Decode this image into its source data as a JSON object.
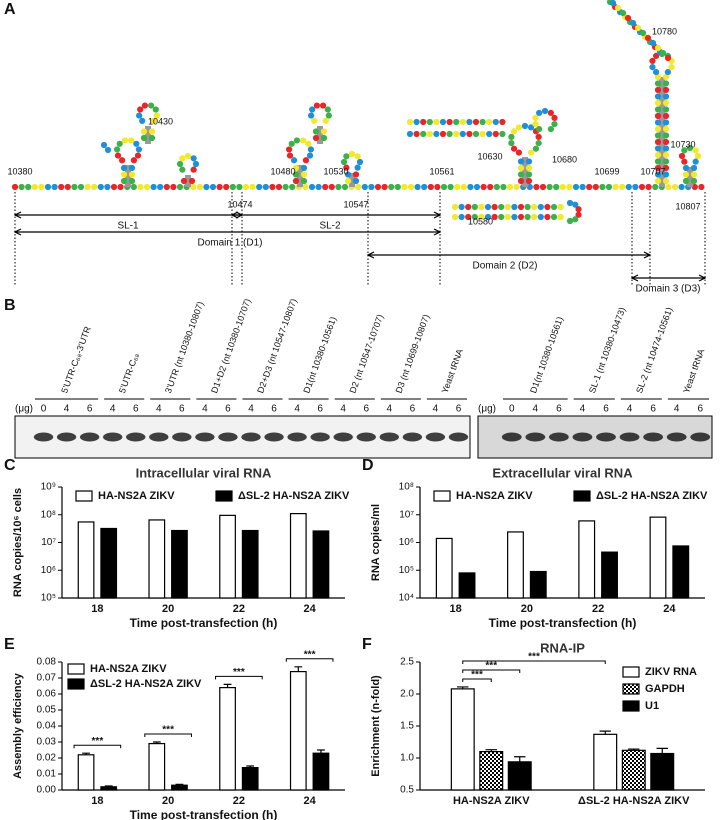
{
  "diagram": {
    "panel": "A",
    "positions": [
      "10380",
      "10430",
      "10474",
      "10480",
      "10530",
      "10547",
      "10561",
      "10580",
      "10630",
      "10680",
      "10699",
      "10707",
      "10730",
      "10780",
      "10807"
    ],
    "regions": [
      "SL-1",
      "SL-2",
      "Domain 1 (D1)",
      "Domain 2 (D2)",
      "Domain 3 (D3)"
    ]
  },
  "gel": {
    "panel": "B",
    "unit": "(μg)",
    "left": [
      {
        "label": "5'UTR-C₆₈-3'UTR",
        "doses": [
          "0",
          "4",
          "6"
        ]
      },
      {
        "label": "5'UTR-C₆₈",
        "doses": [
          "4",
          "6"
        ]
      },
      {
        "label": "3'UTR (nt 10380-10807)",
        "doses": [
          "4",
          "6"
        ]
      },
      {
        "label": "D1+D2 (nt 10380-10707)",
        "doses": [
          "4",
          "6"
        ]
      },
      {
        "label": "D2+D3 (nt 10547-10807)",
        "doses": [
          "4",
          "6"
        ]
      },
      {
        "label": "D1(nt 10380-10561)",
        "doses": [
          "4",
          "6"
        ]
      },
      {
        "label": "D2 (nt 10547-10707)",
        "doses": [
          "4",
          "6"
        ]
      },
      {
        "label": "D3 (nt 10699-10807)",
        "doses": [
          "4",
          "6"
        ]
      },
      {
        "label": "Yeast tRNA",
        "doses": [
          "4",
          "6"
        ]
      }
    ],
    "right": [
      {
        "label": "D1(nt 10380-10561)",
        "doses": [
          "0",
          "4",
          "6"
        ]
      },
      {
        "label": "SL-1 (nt 10380-10473)",
        "doses": [
          "4",
          "6"
        ]
      },
      {
        "label": "SL-2 (nt 10474-10561)",
        "doses": [
          "4",
          "6"
        ]
      },
      {
        "label": "Yeast tRNA",
        "doses": [
          "4",
          "6"
        ]
      }
    ]
  },
  "chart_data": [
    {
      "type": "bar",
      "panel": "C",
      "title": "Intracellular viral RNA",
      "ylabel": "RNA copies/10⁶ cells",
      "xlabel": "Time post-transfection (h)",
      "categories": [
        "18",
        "20",
        "22",
        "24"
      ],
      "log_y": true,
      "legend": "top",
      "ylim": [
        100000,
        1000000000
      ],
      "yticks": [
        {
          "value": 100000,
          "label": "10⁵"
        },
        {
          "value": 1000000,
          "label": "10⁶"
        },
        {
          "value": 10000000,
          "label": "10⁷"
        },
        {
          "value": 100000000,
          "label": "10⁸"
        },
        {
          "value": 1000000000,
          "label": "10⁹"
        }
      ],
      "series": [
        {
          "name": "HA-NS2A ZIKV",
          "color": "#ffffff",
          "values": [
            55000000,
            65000000,
            95000000,
            110000000
          ]
        },
        {
          "name": "ΔSL-2 HA-NS2A ZIKV",
          "color": "#000000",
          "values": [
            32000000,
            27000000,
            27000000,
            26000000
          ]
        }
      ]
    },
    {
      "type": "bar",
      "panel": "D",
      "title": "Extracellular viral RNA",
      "ylabel": "RNA copies/ml",
      "xlabel": "Time post-transfection (h)",
      "categories": [
        "18",
        "20",
        "22",
        "24"
      ],
      "log_y": true,
      "legend": "top",
      "ylim": [
        10000,
        100000000
      ],
      "yticks": [
        {
          "value": 10000,
          "label": "10⁴"
        },
        {
          "value": 100000,
          "label": "10⁵"
        },
        {
          "value": 1000000,
          "label": "10⁶"
        },
        {
          "value": 10000000,
          "label": "10⁷"
        },
        {
          "value": 100000000,
          "label": "10⁸"
        }
      ],
      "series": [
        {
          "name": "HA-NS2A ZIKV",
          "color": "#ffffff",
          "values": [
            1400000,
            2400000,
            6000000,
            8200000
          ]
        },
        {
          "name": "ΔSL-2 HA-NS2A ZIKV",
          "color": "#000000",
          "values": [
            80000,
            90000,
            450000,
            750000
          ]
        }
      ]
    },
    {
      "type": "bar",
      "panel": "E",
      "ylabel": "Assembly efficiency",
      "xlabel": "Time post-transfection (h)",
      "categories": [
        "18",
        "20",
        "22",
        "24"
      ],
      "legend": "upper left",
      "ylim": [
        0,
        0.08
      ],
      "yticks": [
        {
          "value": 0,
          "label": "0.00"
        },
        0.01,
        0.02,
        0.03,
        0.04,
        0.05,
        0.06,
        0.07,
        0.08
      ],
      "series": [
        {
          "name": "HA-NS2A ZIKV",
          "color": "#ffffff",
          "values": [
            0.022,
            0.029,
            0.064,
            0.074
          ],
          "errors": [
            0.001,
            0.001,
            0.002,
            0.003
          ]
        },
        {
          "name": "ΔSL-2 HA-NS2A ZIKV",
          "color": "#000000",
          "values": [
            0.002,
            0.003,
            0.014,
            0.023
          ],
          "errors": [
            0.0005,
            0.0005,
            0.001,
            0.002
          ]
        }
      ],
      "annotations": [
        "***",
        "***",
        "***",
        "***"
      ]
    },
    {
      "type": "bar",
      "panel": "F",
      "title": "RNA-IP",
      "ylabel": "Enrichment (n-fold)",
      "categories": [
        "HA-NS2A ZIKV",
        "ΔSL-2 HA-NS2A ZIKV"
      ],
      "legend": "upper right",
      "ylim": [
        0.5,
        2.5
      ],
      "yticks": [
        0.5,
        {
          "value": 1,
          "label": "1.0"
        },
        1.5,
        {
          "value": 2,
          "label": "2.0"
        },
        2.5
      ],
      "series": [
        {
          "name": "ZIKV RNA",
          "color": "#ffffff",
          "values": [
            2.08,
            1.37
          ],
          "errors": [
            0.03,
            0.05
          ]
        },
        {
          "name": "GAPDH",
          "color": "#ffffff",
          "pattern": "checker",
          "values": [
            1.1,
            1.12
          ],
          "errors": [
            0.03,
            0.02
          ]
        },
        {
          "name": "U1",
          "color": "#000000",
          "values": [
            0.94,
            1.07
          ],
          "errors": [
            0.08,
            0.08
          ]
        }
      ],
      "annotations": [
        "***",
        "***",
        "***"
      ]
    }
  ]
}
